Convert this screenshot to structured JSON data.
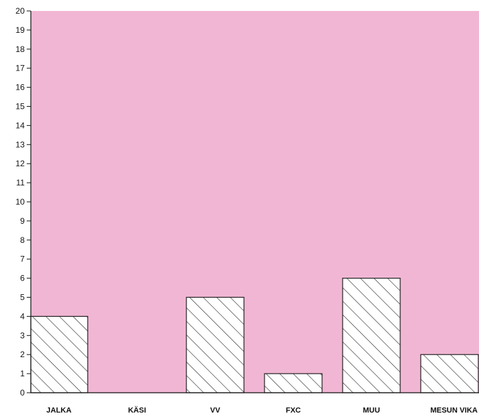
{
  "chart_data": {
    "type": "bar",
    "categories": [
      "JALKA",
      "KÄSI",
      "VV",
      "FXC",
      "MUU",
      "MESUN VIKA"
    ],
    "values": [
      4,
      0,
      5,
      1,
      6,
      2
    ],
    "title": "",
    "xlabel": "",
    "ylabel": "",
    "ylim": [
      0,
      20
    ],
    "yticks": [
      0,
      1,
      2,
      3,
      4,
      5,
      6,
      7,
      8,
      9,
      10,
      11,
      12,
      13,
      14,
      15,
      16,
      17,
      18,
      19,
      20
    ],
    "grid": false,
    "bar_fill": "hatched",
    "colors": {
      "plot_background": "#f1b6d3",
      "bar_fill": "#ffffff",
      "bar_stroke": "#222222",
      "axis": "#111111"
    }
  }
}
